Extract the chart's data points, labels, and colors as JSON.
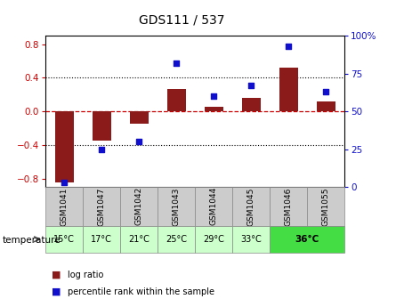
{
  "title": "GDS111 / 537",
  "samples": [
    "GSM1041",
    "GSM1047",
    "GSM1042",
    "GSM1043",
    "GSM1044",
    "GSM1045",
    "GSM1046",
    "GSM1055"
  ],
  "temperatures": [
    "15°C",
    "17°C",
    "21°C",
    "25°C",
    "29°C",
    "33°C",
    "36°C"
  ],
  "log_ratio": [
    -0.85,
    -0.35,
    -0.15,
    0.27,
    0.05,
    0.16,
    0.52,
    0.12
  ],
  "percentile": [
    3,
    25,
    30,
    82,
    60,
    67,
    93,
    63
  ],
  "ylim_left": [
    -0.9,
    0.9
  ],
  "ylim_right": [
    0,
    100
  ],
  "yticks_left": [
    -0.8,
    -0.4,
    0.0,
    0.4,
    0.8
  ],
  "yticks_right": [
    0,
    25,
    50,
    75,
    100
  ],
  "bar_color": "#8B1A1A",
  "dot_color": "#1010CC",
  "hline_color": "#CC0000",
  "dot_grid_color": "#000000",
  "temp_color_normal": "#ccffcc",
  "temp_color_highlight": "#44dd44",
  "sample_bg_color": "#cccccc",
  "legend_bar_label": "log ratio",
  "legend_dot_label": "percentile rank within the sample",
  "temp_row_label": "temperature",
  "n_individual_temps": 6,
  "highlight_temp": "36°C"
}
